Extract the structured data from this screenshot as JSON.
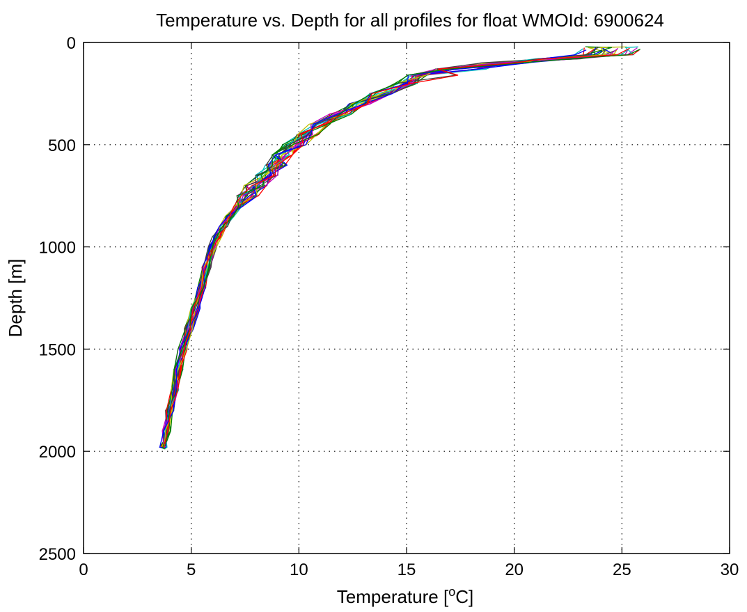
{
  "chart_data": {
    "type": "line",
    "title": "Temperature vs. Depth for all profiles for float WMOId: 6900624",
    "xlabel_main": "Temperature [",
    "xlabel_sup": "o",
    "xlabel_end": "C]",
    "ylabel": "Depth [m]",
    "xlim": [
      0,
      30
    ],
    "ylim": [
      0,
      2500
    ],
    "y_reversed": true,
    "grid": true,
    "x_ticks": [
      0,
      5,
      10,
      15,
      20,
      25,
      30
    ],
    "y_ticks": [
      0,
      500,
      1000,
      1500,
      2000,
      2500
    ],
    "colors": [
      "#0000ff",
      "#008000",
      "#ff0000",
      "#00bfbf",
      "#bf00bf",
      "#bfbf00",
      "#404040"
    ],
    "profile_count": 24,
    "base_profile": {
      "depth": [
        25,
        60,
        80,
        100,
        130,
        160,
        200,
        250,
        300,
        350,
        400,
        450,
        500,
        550,
        600,
        650,
        700,
        750,
        800,
        850,
        900,
        950,
        1000,
        1100,
        1200,
        1300,
        1400,
        1500,
        1600,
        1700,
        1800,
        1900,
        1980
      ],
      "temperature": [
        24.2,
        23.6,
        22.0,
        19.5,
        17.5,
        16.2,
        15.0,
        13.8,
        12.8,
        11.9,
        11.0,
        10.4,
        9.8,
        9.3,
        8.9,
        8.5,
        8.0,
        7.6,
        7.2,
        6.8,
        6.5,
        6.2,
        6.0,
        5.7,
        5.5,
        5.2,
        4.9,
        4.6,
        4.4,
        4.2,
        4.0,
        3.85,
        3.75
      ]
    }
  }
}
